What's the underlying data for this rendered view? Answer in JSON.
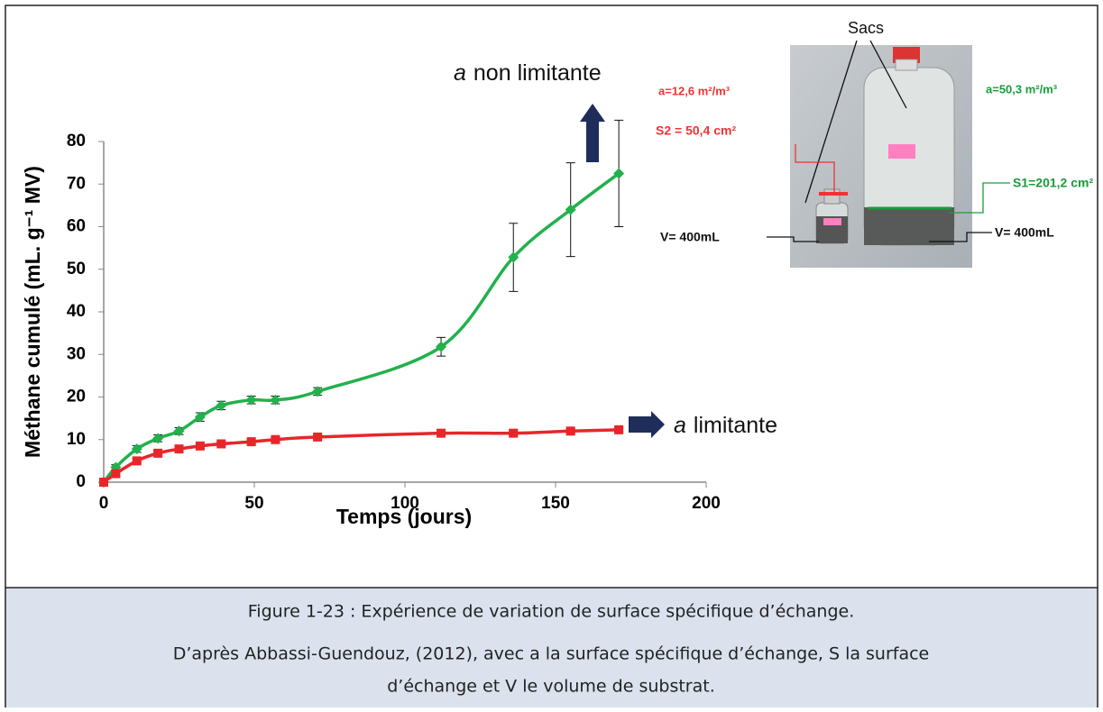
{
  "chart_data": {
    "type": "line",
    "ylabel": "Méthane cumulé (mL. g⁻¹ MV)",
    "xlabel": "Temps (jours)",
    "x": [
      0,
      4,
      11,
      18,
      25,
      32,
      39,
      49,
      57,
      71,
      112,
      136,
      155,
      171
    ],
    "series": [
      {
        "color": "#22b14c",
        "values": [
          0,
          3.5,
          7.8,
          10.3,
          12,
          15.3,
          18,
          19.3,
          19.3,
          21.3,
          31.8,
          52.8,
          64,
          72.5
        ],
        "errors": [
          0.5,
          0.6,
          0.8,
          0.8,
          0.8,
          1,
          1,
          0.9,
          0.9,
          0.9,
          2.2,
          8,
          11,
          12.5
        ],
        "marker": "diamond"
      },
      {
        "color": "#e8262a",
        "values": [
          0,
          2,
          5,
          6.8,
          7.8,
          8.5,
          9,
          9.5,
          10,
          10.6,
          11.5,
          11.5,
          12,
          12.3
        ],
        "errors": [
          0.5,
          0.5,
          0.5,
          0.5,
          0.5,
          0.5,
          0.5,
          0.5,
          0.5,
          0.5,
          0.5,
          0.5,
          0.5,
          0.5
        ],
        "marker": "square"
      }
    ],
    "xlim": [
      0,
      200
    ],
    "xticks": [
      0,
      50,
      100,
      150,
      200
    ],
    "ylim": [
      0,
      80
    ],
    "yticks": [
      0,
      10,
      20,
      30,
      40,
      50,
      60,
      70,
      80
    ],
    "annotations": [
      {
        "italic": "a",
        "text": "non limitante"
      },
      {
        "italic": "a",
        "text": "limitante"
      }
    ]
  },
  "inset": {
    "sacs": "Sacs",
    "a_small": "a=12,6 m²/m³",
    "s2": "S2 = 50,4 cm²",
    "a_large": "a=50,3 m²/m³",
    "s1": "S1=201,2 cm²",
    "v_left": "V= 400mL",
    "v_right": "V= 400mL"
  },
  "caption": {
    "title": "Figure 1-23 : Expérience de variation de surface spécifique d’échange.",
    "lines": [
      "D’après Abbassi-Guendouz, (2012), avec a la surface spécifique d’échange, S la surface",
      "d’échange et V le volume de substrat."
    ]
  }
}
